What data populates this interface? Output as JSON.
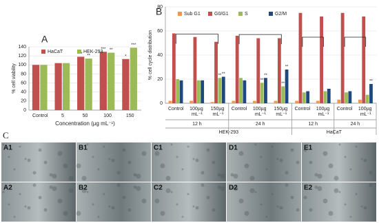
{
  "chart_data": [
    {
      "type": "bar",
      "title": "A",
      "ylabel": "% cell viability",
      "xlabel": "Concentration (μg mL⁻¹)",
      "categories": [
        "Control",
        "5",
        "50",
        "100",
        "150"
      ],
      "ylim": [
        0,
        140
      ],
      "yticks": [
        0,
        20,
        40,
        60,
        80,
        100,
        120,
        140
      ],
      "grid": true,
      "series": [
        {
          "name": "HaCaT",
          "color": "#c0504d",
          "values": [
            100,
            104,
            118,
            129,
            113
          ],
          "annotations": [
            null,
            null,
            "**",
            "***",
            "*"
          ]
        },
        {
          "name": "HEK-293",
          "color": "#9bbb59",
          "values": [
            100,
            104,
            114,
            127,
            138
          ],
          "annotations": [
            null,
            null,
            "**",
            "**",
            "***"
          ]
        }
      ]
    },
    {
      "type": "bar",
      "title": "B",
      "ylabel": "% cell cycle distribution",
      "categories": [
        "Control",
        "100µg mL⁻¹",
        "150µg mL⁻¹",
        "Control",
        "100µg mL⁻¹",
        "150µg mL⁻¹",
        "Control",
        "100µg mL⁻¹",
        "Control",
        "100µg mL⁻¹"
      ],
      "groups": [
        "12 h",
        "24 h",
        "12 h",
        "24 h"
      ],
      "supergroups": [
        "HEK-293",
        "HaCaT"
      ],
      "ylim": [
        0,
        80
      ],
      "yticks": [
        0,
        20,
        40,
        60,
        80
      ],
      "grid": true,
      "series": [
        {
          "name": "Sub G1",
          "color": "#f79646",
          "values": [
            2,
            2,
            1,
            2,
            2,
            2,
            2,
            2,
            3,
            3
          ],
          "annotations": [
            null,
            null,
            null,
            null,
            null,
            null,
            null,
            null,
            null,
            null
          ]
        },
        {
          "name": "G0/G1",
          "color": "#c0504d",
          "values": [
            58,
            55,
            51,
            56,
            54,
            54,
            75,
            72,
            75,
            72
          ],
          "annotations": [
            null,
            null,
            null,
            null,
            null,
            null,
            null,
            null,
            null,
            null
          ]
        },
        {
          "name": "S",
          "color": "#9bbb59",
          "values": [
            20,
            19,
            21,
            21,
            17,
            14,
            9,
            10,
            9,
            7
          ],
          "annotations": [
            null,
            null,
            "**",
            null,
            "**",
            "**",
            null,
            null,
            null,
            null
          ]
        },
        {
          "name": "G2/M",
          "color": "#1f497d",
          "values": [
            19,
            19,
            22,
            19,
            21,
            28,
            10,
            12,
            10,
            16
          ],
          "annotations": [
            null,
            null,
            "**",
            null,
            "**",
            "**",
            null,
            null,
            null,
            "**"
          ]
        }
      ]
    }
  ],
  "figure": {
    "panel": "C",
    "images": [
      "A1",
      "B1",
      "C1",
      "D1",
      "E1",
      "A2",
      "B2",
      "C2",
      "D2",
      "E2"
    ]
  }
}
